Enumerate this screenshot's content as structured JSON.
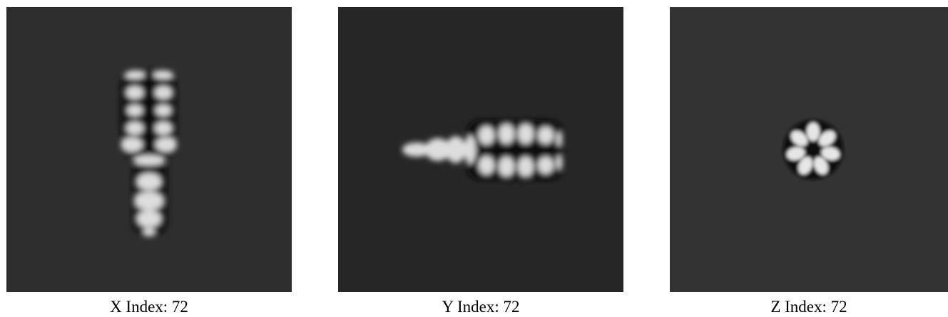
{
  "panels": [
    {
      "caption": "X Index: 72"
    },
    {
      "caption": "Y Index: 72"
    },
    {
      "caption": "Z Index: 72"
    }
  ]
}
